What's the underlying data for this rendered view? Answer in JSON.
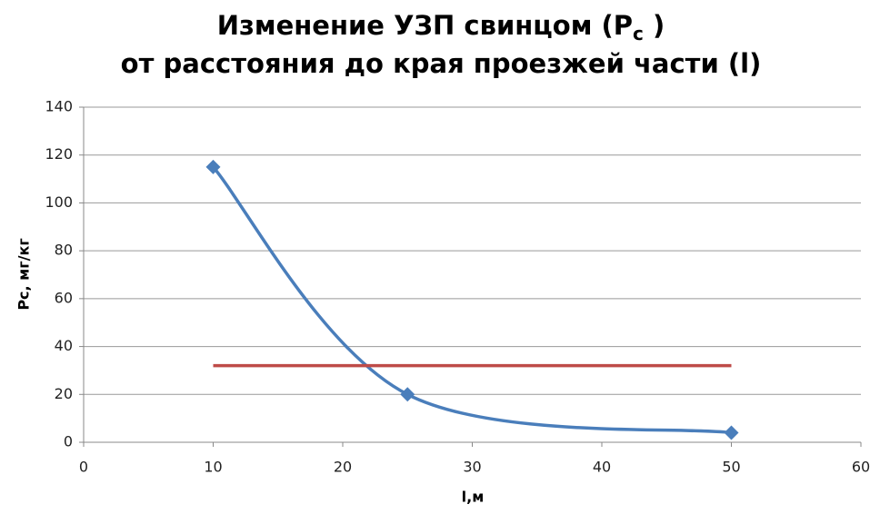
{
  "chart_data": {
    "type": "scatter",
    "title": {
      "line1": "Изменение УЗП свинцом (P",
      "subscript": "c",
      "line1_end": " )",
      "line2": "от расстояния до края проезжей части (l)"
    },
    "x_label": "l,м",
    "y_label": "Рс, мг/кг",
    "series": [
      {
        "color": "#4a7ebb",
        "x": [
          10,
          25,
          50
        ],
        "values": [
          115,
          20,
          4
        ],
        "smooth": true,
        "markers": true
      },
      {
        "color": "#be4b48",
        "x": [
          10,
          50
        ],
        "values": [
          32,
          32
        ],
        "smooth": false,
        "markers": false
      }
    ],
    "xlim": [
      0,
      60
    ],
    "xticks": [
      0,
      10,
      20,
      30,
      40,
      50,
      60
    ],
    "ylim": [
      0,
      140
    ],
    "yticks": [
      0,
      20,
      40,
      60,
      80,
      100,
      120,
      140
    ],
    "grid": true
  }
}
